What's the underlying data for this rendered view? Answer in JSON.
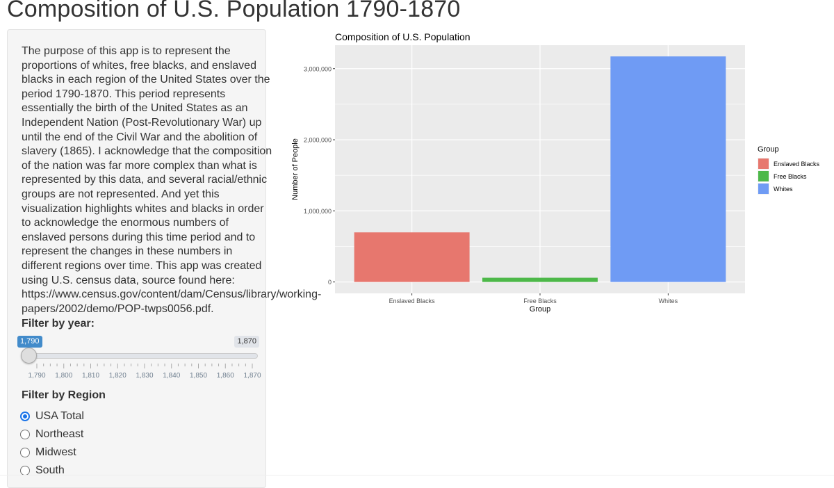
{
  "app": {
    "title": "Composition of U.S. Population 1790-1870"
  },
  "sidebar": {
    "description_lines": [
      "The purpose of this app is to represent the",
      "proportions of whites, free blacks, and enslaved",
      "blacks in each region of the United States over the",
      "period 1790-1870. This period represents",
      "essentially the birth of the United States as an",
      "Independent Nation (Post-Revolutionary War) up",
      "until the end of the Civil War and the abolition of",
      "slavery (1865). I acknowledge that the composition",
      "of the nation was far more complex than what is",
      "represented by this data, and several racial/ethnic",
      "groups are not represented. And yet this",
      "visualization highlights whites and blacks in order",
      "to acknowledge the enormous numbers of",
      "enslaved persons during this time period and to",
      "represent the changes in these numbers in",
      "different regions over time. This app was created",
      "using U.S. census data, source found here:",
      "https://www.census.gov/content/dam/Census/library/working-",
      "papers/2002/demo/POP-twps0056.pdf."
    ],
    "year_filter": {
      "label": "Filter by year:",
      "value": "1,790",
      "max": "1,870",
      "selected_year": 1790,
      "min_year": 1790,
      "max_year": 1870,
      "tick_labels": [
        "1,790",
        "1,800",
        "1,810",
        "1,820",
        "1,830",
        "1,840",
        "1,850",
        "1,860",
        "1,870"
      ]
    },
    "region_filter": {
      "label": "Filter by Region",
      "options": [
        {
          "label": "USA Total",
          "checked": true
        },
        {
          "label": "Northeast",
          "checked": false
        },
        {
          "label": "Midwest",
          "checked": false
        },
        {
          "label": "South",
          "checked": false
        }
      ]
    }
  },
  "chart_data": {
    "type": "bar",
    "title": "Composition of U.S. Population",
    "xlabel": "Group",
    "ylabel": "Number of People",
    "categories": [
      "Enslaved Blacks",
      "Free Blacks",
      "Whites"
    ],
    "values": [
      697624,
      59527,
      3172006
    ],
    "colors": [
      "#E7776E",
      "#4DB849",
      "#6F9BF4"
    ],
    "ylim": [
      -160000,
      3330000
    ],
    "yticks": [
      0,
      1000000,
      2000000,
      3000000
    ],
    "ytick_labels": [
      "0",
      "1,000,000",
      "2,000,000",
      "3,000,000"
    ],
    "grid": true,
    "panel_background": "#EBEBEB",
    "legend": {
      "title": "Group",
      "position": "right",
      "items": [
        "Enslaved Blacks",
        "Free Blacks",
        "Whites"
      ]
    }
  }
}
